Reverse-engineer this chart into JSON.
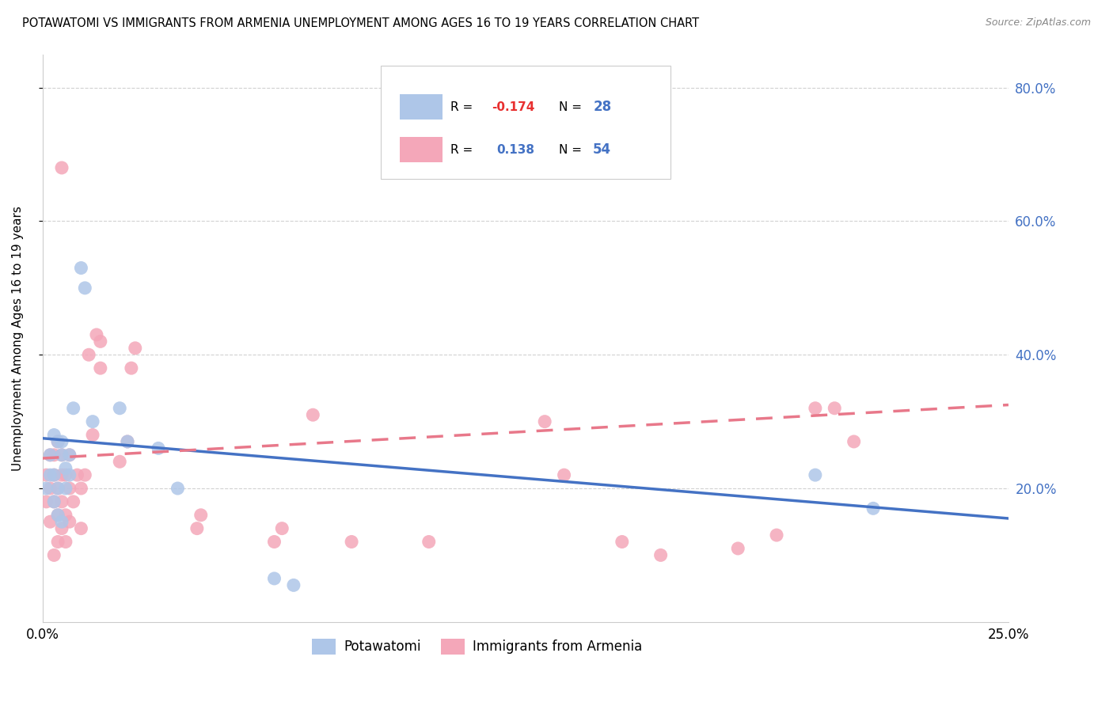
{
  "title": "POTAWATOMI VS IMMIGRANTS FROM ARMENIA UNEMPLOYMENT AMONG AGES 16 TO 19 YEARS CORRELATION CHART",
  "source": "Source: ZipAtlas.com",
  "ylabel": "Unemployment Among Ages 16 to 19 years",
  "right_yticks": [
    "80.0%",
    "60.0%",
    "40.0%",
    "20.0%"
  ],
  "right_ytick_vals": [
    0.8,
    0.6,
    0.4,
    0.2
  ],
  "legend_bottom": [
    "Potawatomi",
    "Immigrants from Armenia"
  ],
  "series1_color": "#aec6e8",
  "series2_color": "#f4a7b9",
  "series1_line_color": "#4472c4",
  "series2_line_color": "#e8788a",
  "xlim": [
    0.0,
    0.25
  ],
  "ylim": [
    0.0,
    0.85
  ],
  "pot_trendline": [
    -0.48,
    0.275
  ],
  "arm_trendline": [
    0.32,
    0.245
  ],
  "potawatomi_x": [
    0.001,
    0.002,
    0.002,
    0.003,
    0.003,
    0.003,
    0.004,
    0.004,
    0.004,
    0.005,
    0.005,
    0.005,
    0.006,
    0.006,
    0.007,
    0.007,
    0.008,
    0.01,
    0.011,
    0.013,
    0.02,
    0.022,
    0.03,
    0.035,
    0.06,
    0.065,
    0.2,
    0.215
  ],
  "potawatomi_y": [
    0.2,
    0.25,
    0.22,
    0.18,
    0.22,
    0.28,
    0.16,
    0.2,
    0.27,
    0.25,
    0.27,
    0.15,
    0.23,
    0.2,
    0.22,
    0.25,
    0.32,
    0.53,
    0.5,
    0.3,
    0.32,
    0.27,
    0.26,
    0.2,
    0.065,
    0.055,
    0.22,
    0.17
  ],
  "armenia_x": [
    0.001,
    0.001,
    0.002,
    0.002,
    0.002,
    0.003,
    0.003,
    0.003,
    0.003,
    0.004,
    0.004,
    0.004,
    0.004,
    0.005,
    0.005,
    0.005,
    0.005,
    0.005,
    0.006,
    0.006,
    0.006,
    0.007,
    0.007,
    0.007,
    0.008,
    0.009,
    0.01,
    0.01,
    0.011,
    0.012,
    0.013,
    0.014,
    0.015,
    0.015,
    0.02,
    0.022,
    0.023,
    0.024,
    0.04,
    0.041,
    0.06,
    0.062,
    0.07,
    0.08,
    0.1,
    0.13,
    0.135,
    0.15,
    0.16,
    0.18,
    0.19,
    0.2,
    0.205,
    0.21
  ],
  "armenia_y": [
    0.18,
    0.22,
    0.15,
    0.2,
    0.25,
    0.1,
    0.18,
    0.22,
    0.25,
    0.12,
    0.16,
    0.2,
    0.27,
    0.14,
    0.18,
    0.22,
    0.25,
    0.68,
    0.12,
    0.16,
    0.22,
    0.15,
    0.2,
    0.25,
    0.18,
    0.22,
    0.14,
    0.2,
    0.22,
    0.4,
    0.28,
    0.43,
    0.38,
    0.42,
    0.24,
    0.27,
    0.38,
    0.41,
    0.14,
    0.16,
    0.12,
    0.14,
    0.31,
    0.12,
    0.12,
    0.3,
    0.22,
    0.12,
    0.1,
    0.11,
    0.13,
    0.32,
    0.32,
    0.27
  ]
}
